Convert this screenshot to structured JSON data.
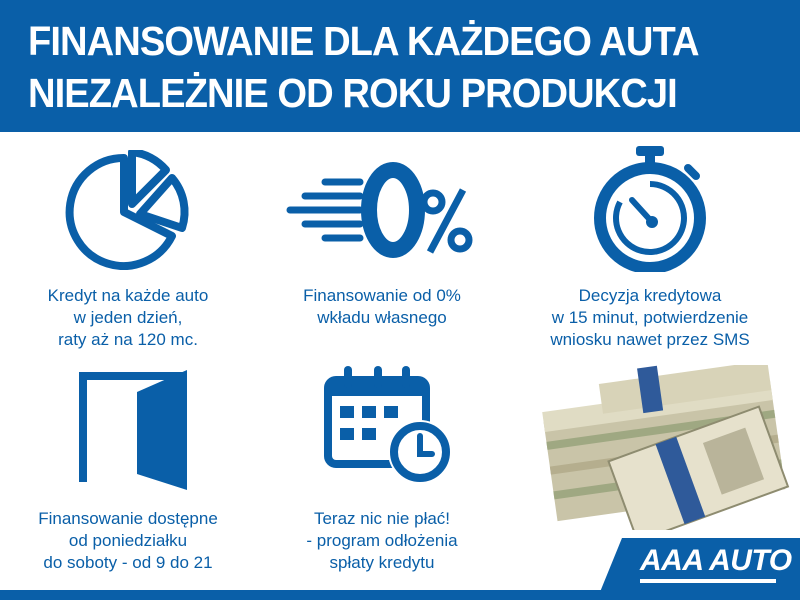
{
  "header": {
    "line1": "FINANSOWANIE DLA KAŻDEGO AUTA",
    "line2": "NIEZALEŻNIE OD ROKU PRODUKCJI"
  },
  "features": [
    {
      "icon": "pie-chart-icon",
      "lines": [
        "Kredyt na każde auto",
        "w jeden dzień,",
        "raty aż na 120 mc."
      ]
    },
    {
      "icon": "zero-percent-icon",
      "lines": [
        "Finansowanie od 0%",
        "wkładu własnego"
      ]
    },
    {
      "icon": "stopwatch-icon",
      "lines": [
        "Decyzja kredytowa",
        "w 15 minut, potwierdzenie",
        "wniosku nawet przez SMS"
      ]
    },
    {
      "icon": "open-door-icon",
      "lines": [
        "Finansowanie dostępne",
        "od poniedziałku",
        "do soboty - od 9 do 21"
      ]
    },
    {
      "icon": "calendar-clock-icon",
      "lines": [
        "Teraz nic nie płać!",
        "- program odłożenia",
        "spłaty kredytu"
      ]
    }
  ],
  "logo": {
    "text": "AAA AUTO"
  },
  "colors": {
    "brand_blue": "#0a5fa8"
  }
}
